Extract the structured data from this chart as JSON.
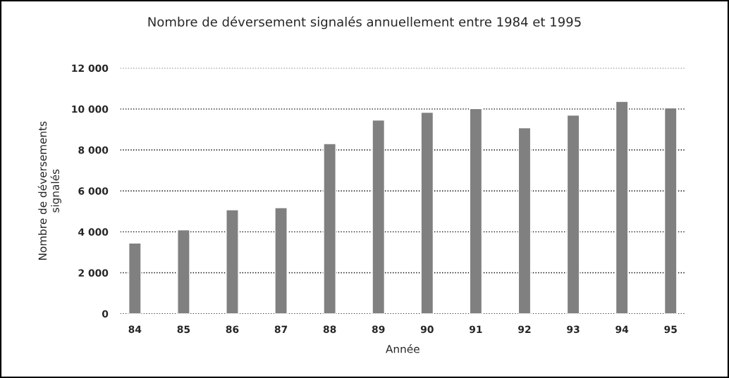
{
  "chart_data": {
    "type": "bar",
    "title": "Nombre de déversement signalés annuellement entre 1984 et 1995",
    "xlabel": "Année",
    "ylabel": "Nombre de déversements\nsignalés",
    "categories": [
      "84",
      "85",
      "86",
      "87",
      "88",
      "89",
      "90",
      "91",
      "92",
      "93",
      "94",
      "95"
    ],
    "values": [
      3450,
      4100,
      5080,
      5180,
      8310,
      9460,
      9840,
      10020,
      9080,
      9700,
      10370,
      10050
    ],
    "color": "#808080",
    "ylim": [
      0,
      12000
    ],
    "yticks": [
      {
        "value": 0,
        "label": "0"
      },
      {
        "value": 2000,
        "label": "2 000"
      },
      {
        "value": 4000,
        "label": "4 000"
      },
      {
        "value": 6000,
        "label": "6 000"
      },
      {
        "value": 8000,
        "label": "8 000"
      },
      {
        "value": 10000,
        "label": "10 000"
      },
      {
        "value": 12000,
        "label": "12 000"
      }
    ],
    "grid": "y",
    "legend": false
  }
}
